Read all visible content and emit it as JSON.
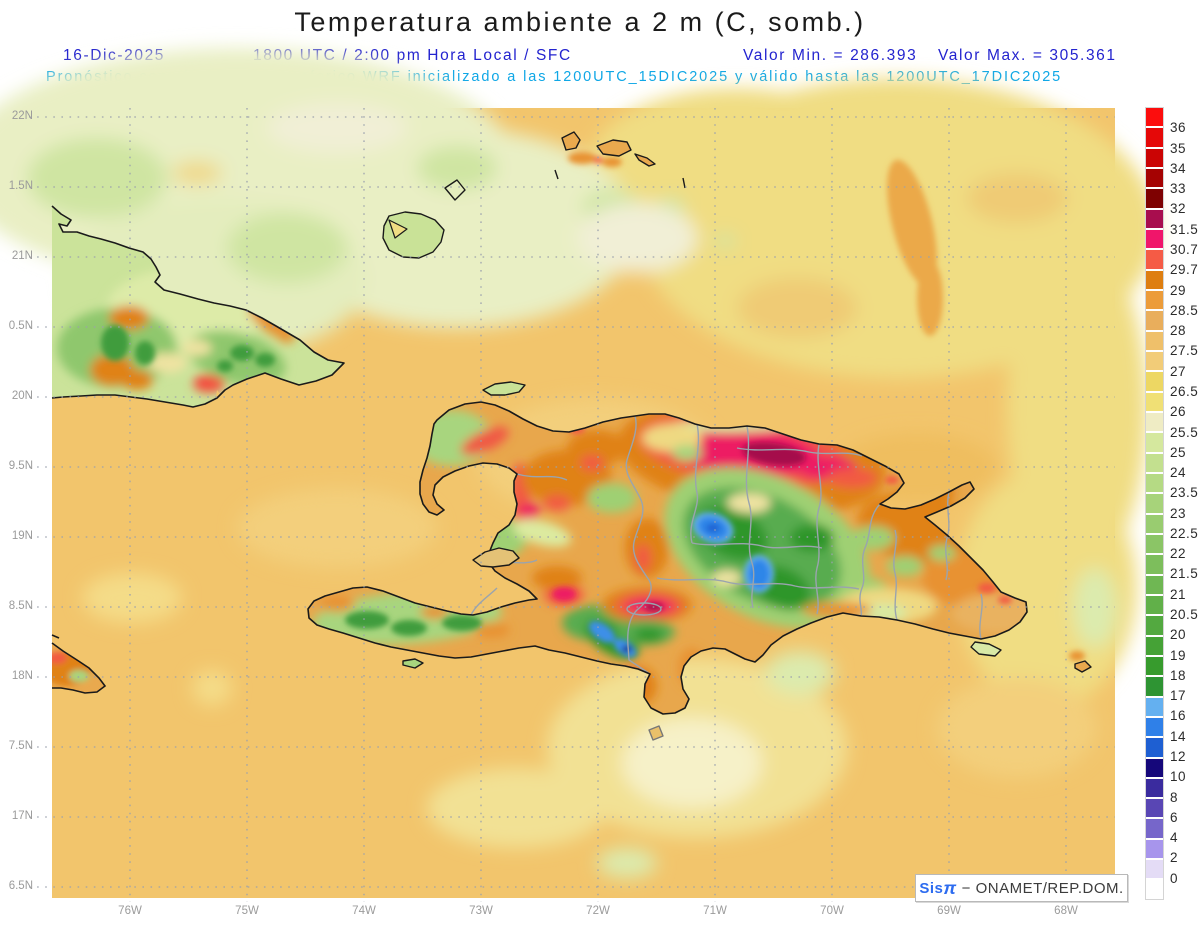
{
  "header": {
    "title": "Temperatura ambiente a 2 m (C, somb.)",
    "date": "16-Dic-2025",
    "valid_time": "1800 UTC / 2:00 pm Hora Local / SFC",
    "valor_min": "Valor Min. = 286.393",
    "valor_max": "Valor Max. = 305.361",
    "model_line": "Pronóstico con el Modelo Atmosferico WRF inicializado a las 1200UTC_15DIC2025 y válido hasta las  1200UTC_17DIC2025"
  },
  "axes": {
    "lat_labels": [
      "22N",
      "1.5N",
      "21N",
      "0.5N",
      "20N",
      "9.5N",
      "19N",
      "8.5N",
      "18N",
      "7.5N",
      "17N",
      "6.5N"
    ],
    "lon_labels": [
      "76W",
      "75W",
      "74W",
      "73W",
      "72W",
      "71W",
      "70W",
      "69W",
      "68W"
    ]
  },
  "colorbar": {
    "units": "C",
    "cells": [
      {
        "color": "#FC0D0D",
        "label": "36"
      },
      {
        "color": "#E50808",
        "label": "35"
      },
      {
        "color": "#CB0404",
        "label": "34"
      },
      {
        "color": "#A50202",
        "label": "33"
      },
      {
        "color": "#7E0101",
        "label": "32"
      },
      {
        "color": "#A80D4E",
        "label": "31.5"
      },
      {
        "color": "#F0156A",
        "label": "30.7"
      },
      {
        "color": "#F55B45",
        "label": "29.7"
      },
      {
        "color": "#DE7E10",
        "label": "29"
      },
      {
        "color": "#EC9C3A",
        "label": "28.5"
      },
      {
        "color": "#E9AE5C",
        "label": "28"
      },
      {
        "color": "#EFC06A",
        "label": "27.5"
      },
      {
        "color": "#F2CC78",
        "label": "27"
      },
      {
        "color": "#EDD763",
        "label": "26.5"
      },
      {
        "color": "#F0E075",
        "label": "26"
      },
      {
        "color": "#EFECC4",
        "label": "25.5"
      },
      {
        "color": "#D5E89E",
        "label": "25"
      },
      {
        "color": "#C3E08F",
        "label": "24"
      },
      {
        "color": "#B5DA84",
        "label": "23.5"
      },
      {
        "color": "#A7D37A",
        "label": "23"
      },
      {
        "color": "#99CC70",
        "label": "22.5"
      },
      {
        "color": "#8BC566",
        "label": "22"
      },
      {
        "color": "#7DBE5C",
        "label": "21.5"
      },
      {
        "color": "#6FB753",
        "label": "21"
      },
      {
        "color": "#61B049",
        "label": "20.5"
      },
      {
        "color": "#53A940",
        "label": "20"
      },
      {
        "color": "#45A236",
        "label": "19"
      },
      {
        "color": "#379B2D",
        "label": "18"
      },
      {
        "color": "#2E9433",
        "label": "17"
      },
      {
        "color": "#64B0F0",
        "label": "16"
      },
      {
        "color": "#2F80E8",
        "label": "14"
      },
      {
        "color": "#1E5FD2",
        "label": "12"
      },
      {
        "color": "#15077A",
        "label": "10"
      },
      {
        "color": "#3A2B9E",
        "label": "8"
      },
      {
        "color": "#5946B4",
        "label": "6"
      },
      {
        "color": "#7666CA",
        "label": "4"
      },
      {
        "color": "#A795EC",
        "label": "2"
      },
      {
        "color": "#E4DCF6",
        "label": "0"
      },
      {
        "color": "#FFFFFF",
        "label": ""
      }
    ]
  },
  "branding": {
    "sis": "Sis",
    "pi": "π",
    "rest": "−  ONAMET/REP.DOM."
  },
  "palette": {
    "header_blue": "#2323cf",
    "header_cyan": "#0fa7e6",
    "axis_gray": "#9b9b9b",
    "title_black": "#1b1b1b",
    "brand_blue": "#2d6cf0",
    "brand_gray": "#3c3c3c",
    "sea_base": "#F2C56C"
  }
}
